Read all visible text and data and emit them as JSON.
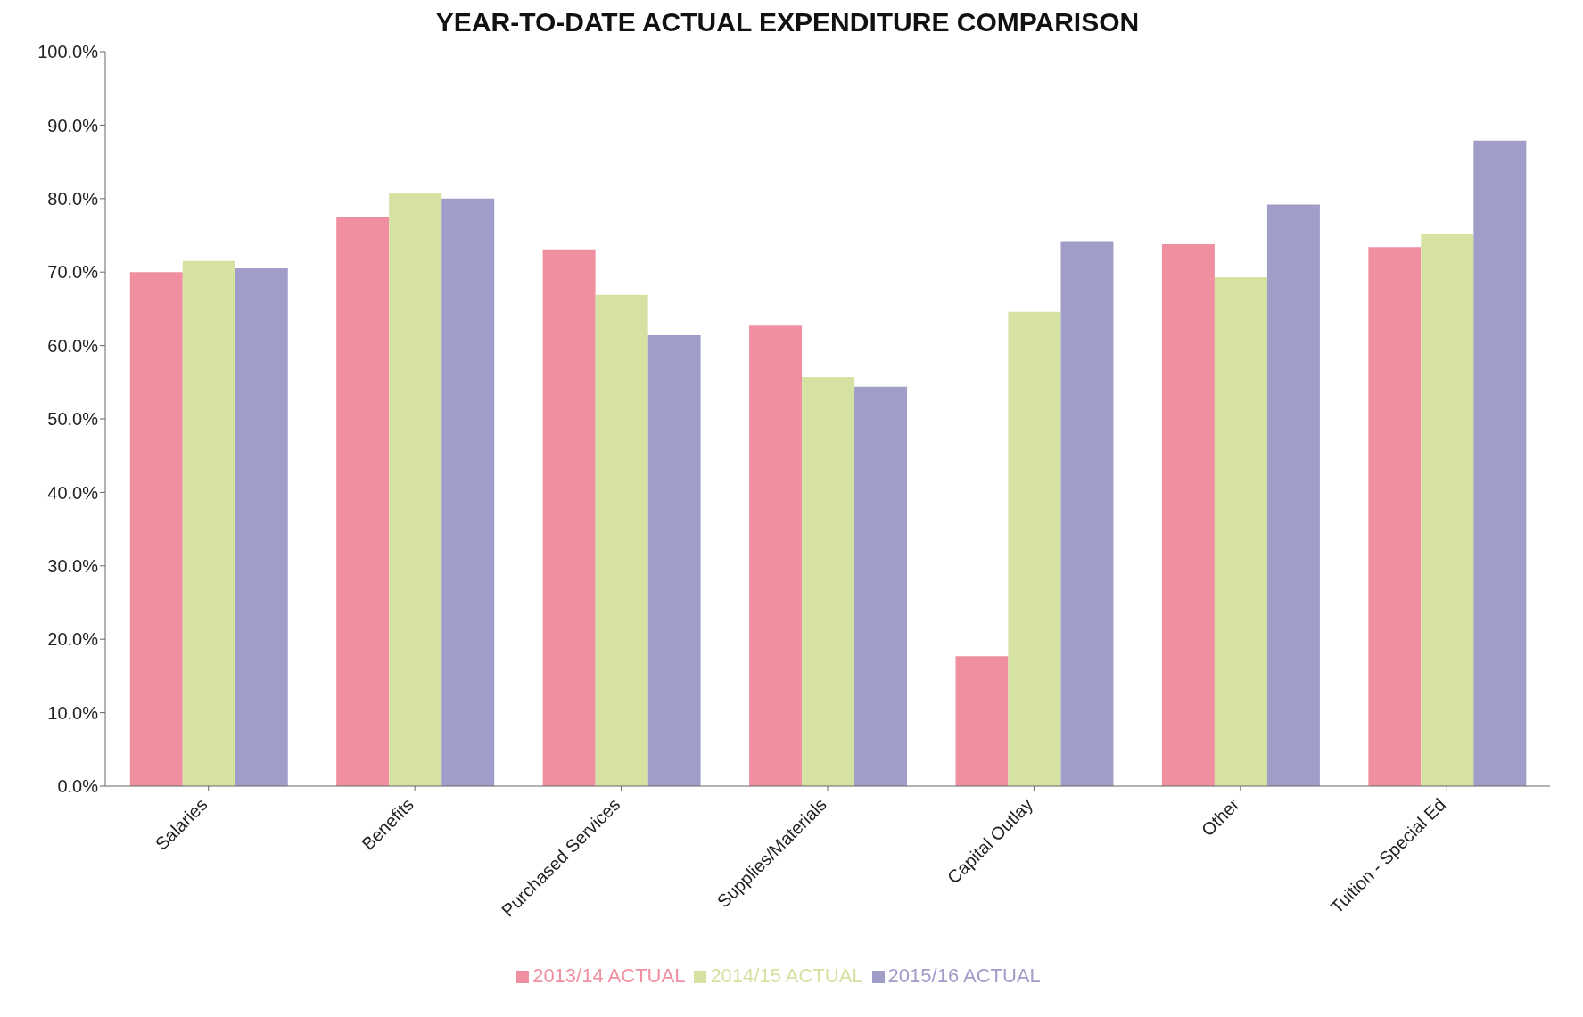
{
  "chart_data": {
    "type": "bar",
    "title": "YEAR-TO-DATE  ACTUAL EXPENDITURE COMPARISON",
    "categories": [
      "Salaries",
      "Benefits",
      "Purchased Services",
      "Supplies/Materials",
      "Capital Outlay",
      "Other",
      "Tuition - Special Ed"
    ],
    "series": [
      {
        "name": "2013/14 ACTUAL",
        "color": "#f08fa0",
        "values": [
          70.0,
          77.5,
          73.1,
          62.7,
          17.7,
          73.8,
          73.4
        ]
      },
      {
        "name": "2014/15 ACTUAL",
        "color": "#d6e2a2",
        "values": [
          71.5,
          80.8,
          66.9,
          55.7,
          64.6,
          69.3,
          75.2
        ]
      },
      {
        "name": "2015/16 ACTUAL",
        "color": "#a09dc8",
        "values": [
          70.5,
          80.0,
          61.4,
          54.4,
          74.2,
          79.2,
          87.9
        ]
      }
    ],
    "ylim": [
      0,
      100
    ],
    "yticks": [
      {
        "value": 0,
        "label": "0.0%"
      },
      {
        "value": 10,
        "label": "10.0%"
      },
      {
        "value": 20,
        "label": "20.0%"
      },
      {
        "value": 30,
        "label": "30.0%"
      },
      {
        "value": 40,
        "label": "40.0%"
      },
      {
        "value": 50,
        "label": "50.0%"
      },
      {
        "value": 60,
        "label": "60.0%"
      },
      {
        "value": 70,
        "label": "70.0%"
      },
      {
        "value": 80,
        "label": "80.0%"
      },
      {
        "value": 90,
        "label": "90.0%"
      },
      {
        "value": 100,
        "label": "100.0%"
      }
    ],
    "grid": false,
    "legend": "bottom"
  }
}
